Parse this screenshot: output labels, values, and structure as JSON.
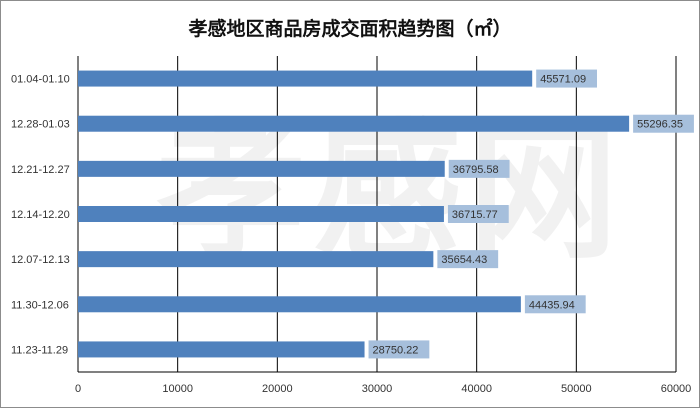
{
  "chart_data": {
    "type": "bar",
    "orientation": "horizontal",
    "title": "孝感地区商品房成交面积趋势图（㎡）",
    "watermark": "孝感网",
    "categories": [
      "01.04-01.10",
      "12.28-01.03",
      "12.21-12.27",
      "12.14-12.20",
      "12.07-12.13",
      "11.30-12.06",
      "11.23-11.29"
    ],
    "values": [
      45571.09,
      55296.35,
      36795.58,
      36715.77,
      35654.43,
      44435.94,
      28750.22
    ],
    "value_labels": [
      "45571.09",
      "55296.35",
      "36795.58",
      "36715.77",
      "35654.43",
      "44435.94",
      "28750.22"
    ],
    "xlim": [
      0,
      60000
    ],
    "xticks": [
      "0",
      "10000",
      "20000",
      "30000",
      "40000",
      "50000",
      "60000"
    ],
    "grid": true,
    "colors": {
      "bar": "#4f81bd",
      "label_bg": "#a6bfdc",
      "grid": "#000000"
    }
  }
}
